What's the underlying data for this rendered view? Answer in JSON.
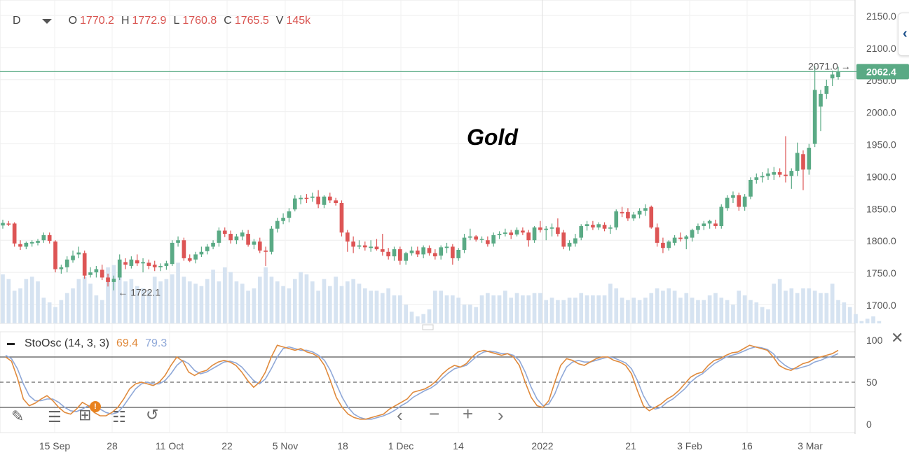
{
  "legend": {
    "interval": "D",
    "o_label": "O",
    "o_value": "1770.2",
    "h_label": "H",
    "h_value": "1772.9",
    "l_label": "L",
    "l_value": "1760.8",
    "c_label": "C",
    "c_value": "1765.5",
    "v_label": "V",
    "v_value": "145k"
  },
  "oscillator": {
    "label": "StoOsc (14, 3, 3)",
    "k_value": "69.4",
    "d_value": "79.3"
  },
  "colors": {
    "up": "#5aaa85",
    "down": "#dd5555",
    "volume": "#d6e3f1",
    "price_line": "#5aaa85",
    "k_line": "#e08a3c",
    "d_line": "#8fa8d8"
  },
  "icons": [
    "pencil-icon",
    "list-icon",
    "add-layer-icon",
    "sliders-icon",
    "reset-icon",
    "chevron-left-icon",
    "minus-icon",
    "plus-icon",
    "chevron-right-icon",
    "close-icon",
    "collapse-panel-icon"
  ],
  "chart_data": {
    "type": "candlestick",
    "title": "Gold",
    "price_axis": {
      "ylim": [
        1666,
        2150
      ],
      "ticks": [
        "2150.0",
        "2100.0",
        "2050.0",
        "2000.0",
        "1950.0",
        "1900.0",
        "1850.0",
        "1800.0",
        "1750.0",
        "1700.0"
      ]
    },
    "current_price": "2062.4",
    "annotations": {
      "high": "2071.0",
      "low": "1722.1"
    },
    "x_ticks": [
      "15 Sep",
      "28",
      "11 Oct",
      "22",
      "5 Nov",
      "18",
      "1 Dec",
      "14",
      "2022",
      "21",
      "3 Feb",
      "16",
      "3 Mar"
    ],
    "candles": [
      {
        "o": 1823,
        "h": 1832,
        "l": 1818,
        "c": 1827
      },
      {
        "o": 1826,
        "h": 1830,
        "l": 1822,
        "c": 1825
      },
      {
        "o": 1826,
        "h": 1828,
        "l": 1790,
        "c": 1795
      },
      {
        "o": 1794,
        "h": 1800,
        "l": 1785,
        "c": 1790
      },
      {
        "o": 1790,
        "h": 1798,
        "l": 1786,
        "c": 1796
      },
      {
        "o": 1795,
        "h": 1800,
        "l": 1790,
        "c": 1797
      },
      {
        "o": 1796,
        "h": 1802,
        "l": 1792,
        "c": 1799
      },
      {
        "o": 1800,
        "h": 1812,
        "l": 1796,
        "c": 1808
      },
      {
        "o": 1808,
        "h": 1812,
        "l": 1795,
        "c": 1799
      },
      {
        "o": 1798,
        "h": 1800,
        "l": 1750,
        "c": 1755
      },
      {
        "o": 1755,
        "h": 1762,
        "l": 1748,
        "c": 1758
      },
      {
        "o": 1758,
        "h": 1775,
        "l": 1750,
        "c": 1770
      },
      {
        "o": 1769,
        "h": 1784,
        "l": 1765,
        "c": 1776
      },
      {
        "o": 1778,
        "h": 1790,
        "l": 1772,
        "c": 1781
      },
      {
        "o": 1780,
        "h": 1784,
        "l": 1740,
        "c": 1745
      },
      {
        "o": 1746,
        "h": 1758,
        "l": 1742,
        "c": 1750
      },
      {
        "o": 1750,
        "h": 1760,
        "l": 1742,
        "c": 1755
      },
      {
        "o": 1754,
        "h": 1762,
        "l": 1738,
        "c": 1742
      },
      {
        "o": 1742,
        "h": 1748,
        "l": 1728,
        "c": 1735
      },
      {
        "o": 1735,
        "h": 1745,
        "l": 1722,
        "c": 1740
      },
      {
        "o": 1742,
        "h": 1778,
        "l": 1738,
        "c": 1770
      },
      {
        "o": 1766,
        "h": 1772,
        "l": 1755,
        "c": 1762
      },
      {
        "o": 1760,
        "h": 1775,
        "l": 1756,
        "c": 1770
      },
      {
        "o": 1769,
        "h": 1778,
        "l": 1760,
        "c": 1764
      },
      {
        "o": 1764,
        "h": 1772,
        "l": 1750,
        "c": 1766
      },
      {
        "o": 1765,
        "h": 1770,
        "l": 1755,
        "c": 1760
      },
      {
        "o": 1762,
        "h": 1768,
        "l": 1752,
        "c": 1758
      },
      {
        "o": 1758,
        "h": 1764,
        "l": 1752,
        "c": 1760
      },
      {
        "o": 1760,
        "h": 1768,
        "l": 1754,
        "c": 1764
      },
      {
        "o": 1763,
        "h": 1800,
        "l": 1760,
        "c": 1796
      },
      {
        "o": 1796,
        "h": 1806,
        "l": 1790,
        "c": 1800
      },
      {
        "o": 1800,
        "h": 1804,
        "l": 1768,
        "c": 1772
      },
      {
        "o": 1772,
        "h": 1778,
        "l": 1766,
        "c": 1768
      },
      {
        "o": 1770,
        "h": 1782,
        "l": 1764,
        "c": 1778
      },
      {
        "o": 1778,
        "h": 1790,
        "l": 1774,
        "c": 1782
      },
      {
        "o": 1783,
        "h": 1794,
        "l": 1778,
        "c": 1790
      },
      {
        "o": 1790,
        "h": 1800,
        "l": 1786,
        "c": 1796
      },
      {
        "o": 1796,
        "h": 1820,
        "l": 1790,
        "c": 1815
      },
      {
        "o": 1815,
        "h": 1820,
        "l": 1805,
        "c": 1810
      },
      {
        "o": 1810,
        "h": 1815,
        "l": 1795,
        "c": 1800
      },
      {
        "o": 1800,
        "h": 1810,
        "l": 1794,
        "c": 1806
      },
      {
        "o": 1806,
        "h": 1816,
        "l": 1800,
        "c": 1812
      },
      {
        "o": 1810,
        "h": 1816,
        "l": 1790,
        "c": 1793
      },
      {
        "o": 1793,
        "h": 1802,
        "l": 1786,
        "c": 1798
      },
      {
        "o": 1798,
        "h": 1804,
        "l": 1780,
        "c": 1784
      },
      {
        "o": 1784,
        "h": 1790,
        "l": 1760,
        "c": 1782
      },
      {
        "o": 1782,
        "h": 1822,
        "l": 1778,
        "c": 1818
      },
      {
        "o": 1818,
        "h": 1835,
        "l": 1812,
        "c": 1830
      },
      {
        "o": 1830,
        "h": 1842,
        "l": 1825,
        "c": 1835
      },
      {
        "o": 1835,
        "h": 1850,
        "l": 1828,
        "c": 1845
      },
      {
        "o": 1848,
        "h": 1870,
        "l": 1845,
        "c": 1865
      },
      {
        "o": 1864,
        "h": 1870,
        "l": 1856,
        "c": 1866
      },
      {
        "o": 1866,
        "h": 1872,
        "l": 1858,
        "c": 1865
      },
      {
        "o": 1866,
        "h": 1874,
        "l": 1860,
        "c": 1868
      },
      {
        "o": 1868,
        "h": 1878,
        "l": 1850,
        "c": 1856
      },
      {
        "o": 1855,
        "h": 1870,
        "l": 1850,
        "c": 1868
      },
      {
        "o": 1868,
        "h": 1874,
        "l": 1858,
        "c": 1862
      },
      {
        "o": 1862,
        "h": 1866,
        "l": 1854,
        "c": 1858
      },
      {
        "o": 1858,
        "h": 1862,
        "l": 1806,
        "c": 1812
      },
      {
        "o": 1812,
        "h": 1816,
        "l": 1782,
        "c": 1798
      },
      {
        "o": 1798,
        "h": 1806,
        "l": 1780,
        "c": 1790
      },
      {
        "o": 1790,
        "h": 1800,
        "l": 1786,
        "c": 1792
      },
      {
        "o": 1792,
        "h": 1798,
        "l": 1784,
        "c": 1789
      },
      {
        "o": 1788,
        "h": 1800,
        "l": 1782,
        "c": 1790
      },
      {
        "o": 1790,
        "h": 1802,
        "l": 1784,
        "c": 1786
      },
      {
        "o": 1786,
        "h": 1810,
        "l": 1776,
        "c": 1782
      },
      {
        "o": 1782,
        "h": 1788,
        "l": 1770,
        "c": 1775
      },
      {
        "o": 1775,
        "h": 1790,
        "l": 1768,
        "c": 1786
      },
      {
        "o": 1786,
        "h": 1790,
        "l": 1762,
        "c": 1768
      },
      {
        "o": 1768,
        "h": 1782,
        "l": 1762,
        "c": 1780
      },
      {
        "o": 1780,
        "h": 1790,
        "l": 1776,
        "c": 1784
      },
      {
        "o": 1784,
        "h": 1790,
        "l": 1774,
        "c": 1778
      },
      {
        "o": 1778,
        "h": 1792,
        "l": 1772,
        "c": 1789
      },
      {
        "o": 1788,
        "h": 1792,
        "l": 1776,
        "c": 1780
      },
      {
        "o": 1780,
        "h": 1786,
        "l": 1770,
        "c": 1775
      },
      {
        "o": 1776,
        "h": 1792,
        "l": 1770,
        "c": 1789
      },
      {
        "o": 1788,
        "h": 1796,
        "l": 1780,
        "c": 1790
      },
      {
        "o": 1790,
        "h": 1794,
        "l": 1762,
        "c": 1772
      },
      {
        "o": 1772,
        "h": 1788,
        "l": 1768,
        "c": 1785
      },
      {
        "o": 1785,
        "h": 1810,
        "l": 1780,
        "c": 1804
      },
      {
        "o": 1804,
        "h": 1818,
        "l": 1800,
        "c": 1806
      },
      {
        "o": 1806,
        "h": 1808,
        "l": 1798,
        "c": 1801
      },
      {
        "o": 1801,
        "h": 1806,
        "l": 1796,
        "c": 1802
      },
      {
        "o": 1800,
        "h": 1806,
        "l": 1790,
        "c": 1794
      },
      {
        "o": 1795,
        "h": 1812,
        "l": 1790,
        "c": 1808
      },
      {
        "o": 1808,
        "h": 1814,
        "l": 1802,
        "c": 1810
      },
      {
        "o": 1810,
        "h": 1818,
        "l": 1806,
        "c": 1812
      },
      {
        "o": 1812,
        "h": 1816,
        "l": 1802,
        "c": 1808
      },
      {
        "o": 1809,
        "h": 1820,
        "l": 1806,
        "c": 1816
      },
      {
        "o": 1815,
        "h": 1820,
        "l": 1808,
        "c": 1812
      },
      {
        "o": 1812,
        "h": 1816,
        "l": 1790,
        "c": 1800
      },
      {
        "o": 1800,
        "h": 1822,
        "l": 1796,
        "c": 1820
      },
      {
        "o": 1820,
        "h": 1830,
        "l": 1812,
        "c": 1816
      },
      {
        "o": 1816,
        "h": 1822,
        "l": 1800,
        "c": 1818
      },
      {
        "o": 1818,
        "h": 1826,
        "l": 1806,
        "c": 1820
      },
      {
        "o": 1820,
        "h": 1834,
        "l": 1806,
        "c": 1810
      },
      {
        "o": 1812,
        "h": 1816,
        "l": 1786,
        "c": 1790
      },
      {
        "o": 1790,
        "h": 1800,
        "l": 1784,
        "c": 1796
      },
      {
        "o": 1795,
        "h": 1810,
        "l": 1790,
        "c": 1803
      },
      {
        "o": 1804,
        "h": 1825,
        "l": 1800,
        "c": 1822
      },
      {
        "o": 1822,
        "h": 1830,
        "l": 1815,
        "c": 1825
      },
      {
        "o": 1824,
        "h": 1830,
        "l": 1816,
        "c": 1820
      },
      {
        "o": 1820,
        "h": 1828,
        "l": 1816,
        "c": 1825
      },
      {
        "o": 1824,
        "h": 1828,
        "l": 1814,
        "c": 1818
      },
      {
        "o": 1818,
        "h": 1824,
        "l": 1810,
        "c": 1820
      },
      {
        "o": 1820,
        "h": 1848,
        "l": 1816,
        "c": 1845
      },
      {
        "o": 1844,
        "h": 1852,
        "l": 1836,
        "c": 1842
      },
      {
        "o": 1844,
        "h": 1850,
        "l": 1830,
        "c": 1834
      },
      {
        "o": 1834,
        "h": 1844,
        "l": 1830,
        "c": 1840
      },
      {
        "o": 1840,
        "h": 1850,
        "l": 1834,
        "c": 1846
      },
      {
        "o": 1846,
        "h": 1856,
        "l": 1838,
        "c": 1850
      },
      {
        "o": 1852,
        "h": 1854,
        "l": 1818,
        "c": 1820
      },
      {
        "o": 1820,
        "h": 1826,
        "l": 1790,
        "c": 1796
      },
      {
        "o": 1796,
        "h": 1804,
        "l": 1780,
        "c": 1788
      },
      {
        "o": 1788,
        "h": 1800,
        "l": 1784,
        "c": 1798
      },
      {
        "o": 1796,
        "h": 1808,
        "l": 1792,
        "c": 1804
      },
      {
        "o": 1804,
        "h": 1812,
        "l": 1798,
        "c": 1802
      },
      {
        "o": 1802,
        "h": 1808,
        "l": 1786,
        "c": 1806
      },
      {
        "o": 1804,
        "h": 1818,
        "l": 1798,
        "c": 1816
      },
      {
        "o": 1816,
        "h": 1826,
        "l": 1810,
        "c": 1822
      },
      {
        "o": 1822,
        "h": 1830,
        "l": 1816,
        "c": 1826
      },
      {
        "o": 1826,
        "h": 1832,
        "l": 1818,
        "c": 1830
      },
      {
        "o": 1826,
        "h": 1832,
        "l": 1818,
        "c": 1822
      },
      {
        "o": 1822,
        "h": 1856,
        "l": 1818,
        "c": 1852
      },
      {
        "o": 1850,
        "h": 1870,
        "l": 1846,
        "c": 1866
      },
      {
        "o": 1866,
        "h": 1876,
        "l": 1858,
        "c": 1870
      },
      {
        "o": 1870,
        "h": 1874,
        "l": 1846,
        "c": 1852
      },
      {
        "o": 1852,
        "h": 1872,
        "l": 1846,
        "c": 1868
      },
      {
        "o": 1868,
        "h": 1898,
        "l": 1864,
        "c": 1894
      },
      {
        "o": 1894,
        "h": 1904,
        "l": 1888,
        "c": 1898
      },
      {
        "o": 1898,
        "h": 1906,
        "l": 1890,
        "c": 1900
      },
      {
        "o": 1900,
        "h": 1912,
        "l": 1894,
        "c": 1904
      },
      {
        "o": 1902,
        "h": 1914,
        "l": 1894,
        "c": 1906
      },
      {
        "o": 1906,
        "h": 1912,
        "l": 1898,
        "c": 1902
      },
      {
        "o": 1902,
        "h": 1962,
        "l": 1890,
        "c": 1900
      },
      {
        "o": 1900,
        "h": 1912,
        "l": 1880,
        "c": 1908
      },
      {
        "o": 1908,
        "h": 1952,
        "l": 1900,
        "c": 1936
      },
      {
        "o": 1934,
        "h": 1940,
        "l": 1878,
        "c": 1910
      },
      {
        "o": 1910,
        "h": 1950,
        "l": 1902,
        "c": 1944
      },
      {
        "o": 1950,
        "h": 2071,
        "l": 1945,
        "c": 2034
      },
      {
        "o": 2008,
        "h": 2034,
        "l": 1970,
        "c": 2028
      },
      {
        "o": 2028,
        "h": 2050,
        "l": 2020,
        "c": 2040
      },
      {
        "o": 2052,
        "h": 2064,
        "l": 2040,
        "c": 2058
      },
      {
        "o": 2054,
        "h": 2070,
        "l": 2050,
        "c": 2062
      }
    ],
    "volume_label": "V",
    "volume": [
      42,
      38,
      28,
      30,
      38,
      40,
      36,
      22,
      18,
      14,
      20,
      26,
      30,
      38,
      40,
      34,
      24,
      20,
      48,
      50,
      44,
      36,
      38,
      32,
      30,
      28,
      40,
      36,
      38,
      42,
      52,
      40,
      36,
      34,
      32,
      38,
      46,
      36,
      48,
      44,
      36,
      34,
      28,
      30,
      40,
      48,
      40,
      36,
      32,
      30,
      38,
      44,
      42,
      36,
      28,
      38,
      32,
      40,
      32,
      36,
      38,
      34,
      30,
      28,
      28,
      26,
      30,
      24,
      24,
      16,
      10,
      6,
      8,
      12,
      28,
      28,
      24,
      24,
      22,
      16,
      16,
      14,
      24,
      26,
      24,
      24,
      28,
      22,
      26,
      24,
      24,
      26,
      26,
      20,
      22,
      20,
      20,
      22,
      22,
      26,
      24,
      24,
      24,
      24,
      34,
      30,
      22,
      20,
      22,
      20,
      22,
      26,
      30,
      28,
      30,
      28,
      22,
      26,
      22,
      20,
      20,
      24,
      26,
      22,
      20,
      16,
      28,
      24,
      20,
      18,
      14,
      12,
      34,
      38,
      28,
      30,
      26,
      30,
      30,
      28,
      26,
      26,
      34,
      20,
      18,
      14,
      8,
      2,
      4,
      6,
      2
    ],
    "oscillator": {
      "ylim": [
        0,
        100
      ],
      "ticks": [
        "100",
        "50",
        "0"
      ],
      "k": [
        80,
        75,
        55,
        30,
        22,
        25,
        30,
        34,
        28,
        20,
        14,
        12,
        18,
        26,
        22,
        14,
        10,
        10,
        14,
        20,
        30,
        42,
        48,
        50,
        48,
        46,
        50,
        58,
        70,
        80,
        75,
        62,
        58,
        62,
        64,
        70,
        74,
        76,
        74,
        70,
        62,
        52,
        44,
        50,
        62,
        80,
        94,
        92,
        90,
        88,
        90,
        86,
        84,
        80,
        70,
        52,
        32,
        20,
        12,
        8,
        6,
        6,
        8,
        10,
        12,
        18,
        22,
        26,
        30,
        38,
        40,
        42,
        46,
        52,
        60,
        66,
        70,
        68,
        72,
        80,
        86,
        88,
        86,
        84,
        82,
        84,
        80,
        70,
        50,
        32,
        22,
        20,
        28,
        50,
        70,
        78,
        76,
        72,
        70,
        74,
        78,
        80,
        80,
        76,
        74,
        70,
        60,
        40,
        22,
        16,
        20,
        24,
        30,
        34,
        40,
        48,
        56,
        60,
        62,
        70,
        76,
        78,
        82,
        85,
        86,
        90,
        94,
        92,
        90,
        88,
        80,
        70,
        66,
        64,
        68,
        72,
        74,
        78,
        80,
        82,
        84,
        88
      ],
      "d": [
        82,
        78,
        66,
        48,
        34,
        28,
        28,
        30,
        30,
        26,
        20,
        16,
        15,
        18,
        22,
        22,
        18,
        14,
        12,
        14,
        22,
        32,
        42,
        48,
        50,
        48,
        48,
        52,
        60,
        70,
        76,
        72,
        64,
        60,
        62,
        66,
        70,
        74,
        75,
        73,
        68,
        60,
        52,
        48,
        54,
        66,
        80,
        90,
        92,
        90,
        88,
        88,
        86,
        82,
        76,
        64,
        48,
        32,
        20,
        12,
        8,
        6,
        6,
        8,
        10,
        13,
        17,
        22,
        26,
        32,
        36,
        40,
        43,
        48,
        55,
        61,
        66,
        68,
        70,
        76,
        82,
        86,
        87,
        86,
        84,
        84,
        82,
        76,
        62,
        44,
        30,
        22,
        24,
        36,
        54,
        68,
        74,
        76,
        74,
        74,
        76,
        78,
        80,
        79,
        76,
        73,
        66,
        52,
        34,
        22,
        18,
        20,
        26,
        30,
        36,
        42,
        50,
        56,
        60,
        66,
        72,
        76,
        80,
        82,
        84,
        87,
        90,
        92,
        91,
        89,
        84,
        76,
        70,
        66,
        66,
        68,
        70,
        74,
        76,
        79,
        81,
        84
      ]
    }
  }
}
